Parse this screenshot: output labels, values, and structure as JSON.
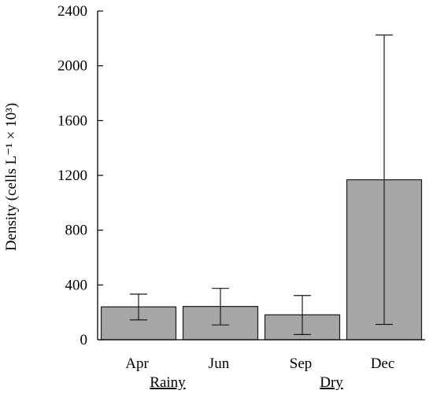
{
  "chart_data": {
    "type": "bar",
    "title": "",
    "xlabel": "",
    "ylabel": "Density (cells L⁻¹ × 10³)",
    "ylim": [
      0,
      2400
    ],
    "yticks": [
      0,
      400,
      800,
      1200,
      1600,
      2000,
      2400
    ],
    "grid": false,
    "categories": [
      "Apr",
      "Jun",
      "Sep",
      "Dec"
    ],
    "values": [
      240,
      243,
      182,
      1168
    ],
    "error_low": [
      145,
      108,
      38,
      112
    ],
    "error_high": [
      333,
      375,
      323,
      2225
    ],
    "groups": [
      {
        "label": "Rainy",
        "categories": [
          "Apr",
          "Jun"
        ]
      },
      {
        "label": "Dry",
        "categories": [
          "Sep",
          "Dec"
        ]
      }
    ],
    "colors": {
      "bar_fill": "#a6a6a6",
      "bar_stroke": "#1a1a1a",
      "axis": "#000000"
    }
  }
}
